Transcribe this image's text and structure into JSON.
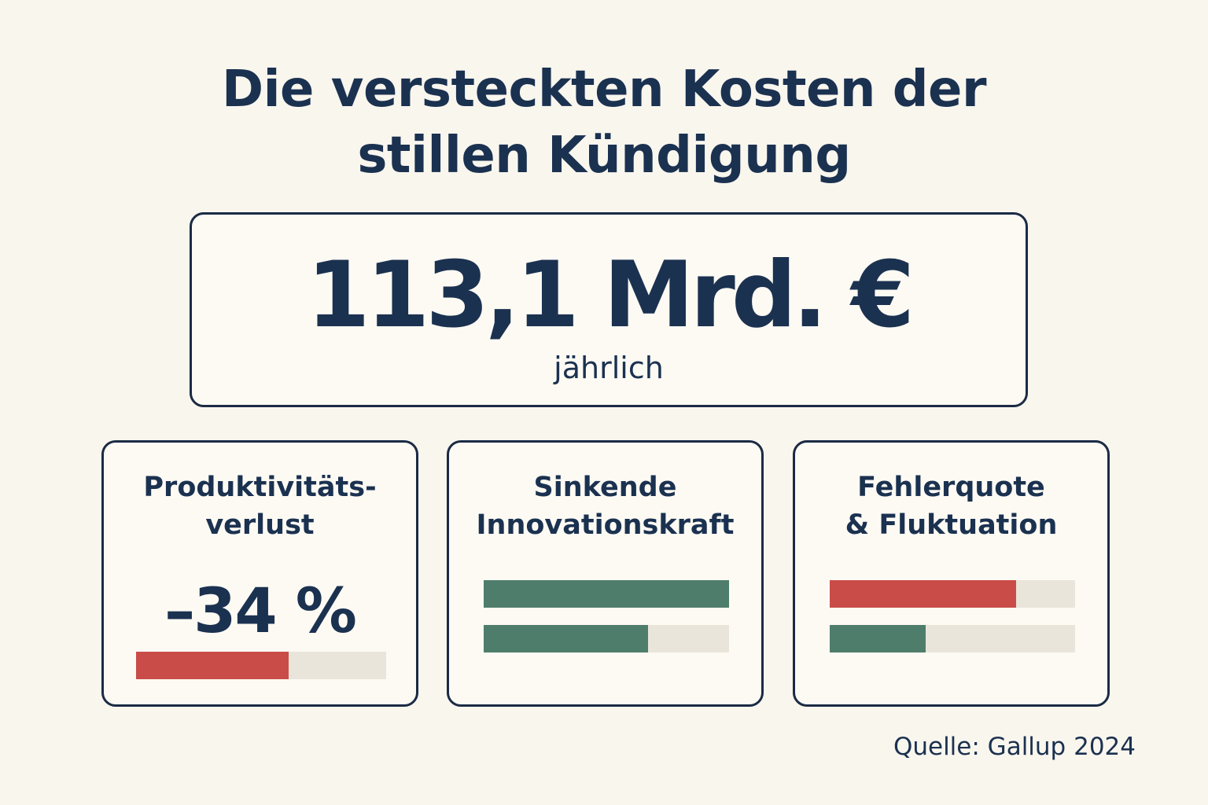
{
  "colors": {
    "background": "#f9f6ee",
    "text": "#1b3150",
    "card_background": "#fcfaf3",
    "border": "#1b2b45",
    "bar_track": "#e9e5da",
    "red": "#c94c48",
    "green": "#4f7d6c"
  },
  "title": {
    "line1": "Die versteckten Kosten der",
    "line2": "stillen Kündigung"
  },
  "hero": {
    "value": "113,1 Mrd. €",
    "unit": "jährlich"
  },
  "cards": [
    {
      "title_line1": "Produktivitäts-",
      "title_line2": "verlust",
      "value": "–34 %",
      "bars": [
        {
          "fraction": 0.61,
          "color": "red"
        }
      ]
    },
    {
      "title_line1": "Sinkende",
      "title_line2": "Innovationskraft",
      "bars": [
        {
          "fraction": 1.0,
          "color": "green"
        },
        {
          "fraction": 0.67,
          "color": "green"
        }
      ]
    },
    {
      "title_line1": "Fehlerquote",
      "title_line2": "& Fluktuation",
      "bars": [
        {
          "fraction": 0.76,
          "color": "red"
        },
        {
          "fraction": 0.39,
          "color": "green"
        }
      ]
    }
  ],
  "source": "Quelle: Gallup 2024"
}
